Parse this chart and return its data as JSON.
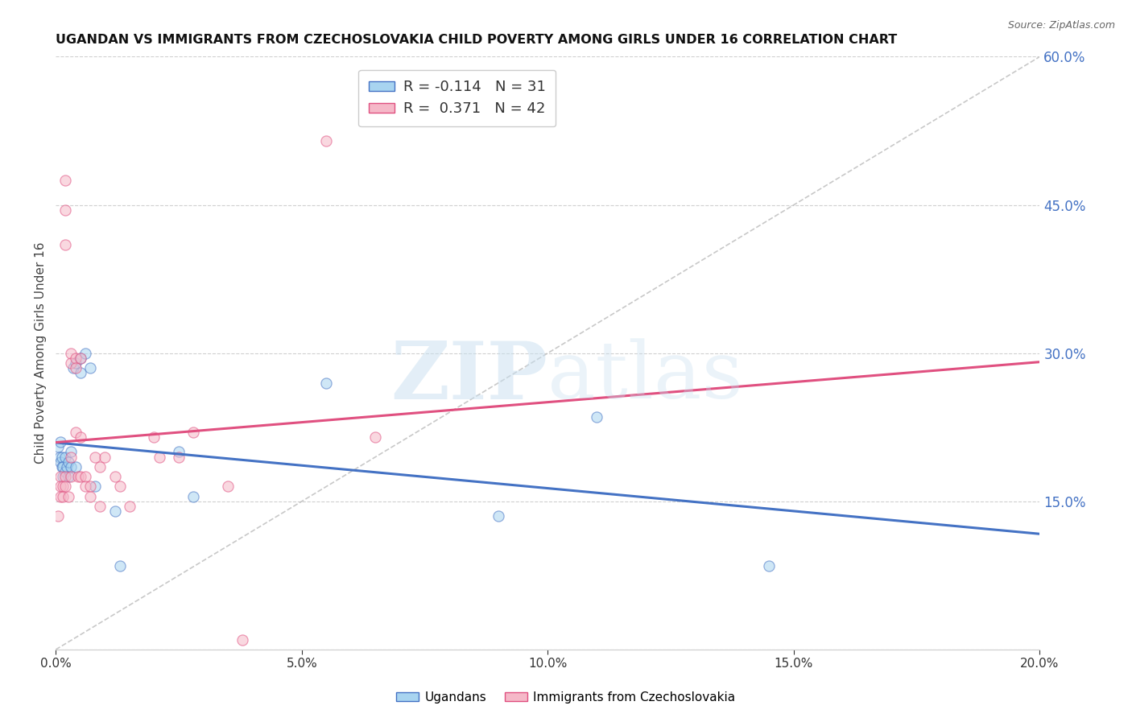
{
  "title": "UGANDAN VS IMMIGRANTS FROM CZECHOSLOVAKIA CHILD POVERTY AMONG GIRLS UNDER 16 CORRELATION CHART",
  "source": "Source: ZipAtlas.com",
  "ylabel": "Child Poverty Among Girls Under 16",
  "xlim": [
    0.0,
    0.2
  ],
  "ylim": [
    0.0,
    0.6
  ],
  "xticks": [
    0.0,
    0.05,
    0.1,
    0.15,
    0.2
  ],
  "yticks_right": [
    0.15,
    0.3,
    0.45,
    0.6
  ],
  "ugandan_x": [
    0.0005,
    0.0008,
    0.001,
    0.001,
    0.0012,
    0.0013,
    0.0015,
    0.0015,
    0.002,
    0.002,
    0.0022,
    0.0025,
    0.0025,
    0.003,
    0.003,
    0.0035,
    0.004,
    0.004,
    0.005,
    0.005,
    0.006,
    0.007,
    0.008,
    0.012,
    0.013,
    0.025,
    0.028,
    0.055,
    0.09,
    0.11,
    0.145
  ],
  "ugandan_y": [
    0.205,
    0.195,
    0.21,
    0.19,
    0.195,
    0.185,
    0.185,
    0.175,
    0.195,
    0.18,
    0.185,
    0.19,
    0.175,
    0.2,
    0.185,
    0.285,
    0.29,
    0.185,
    0.295,
    0.28,
    0.3,
    0.285,
    0.165,
    0.14,
    0.085,
    0.2,
    0.155,
    0.27,
    0.135,
    0.235,
    0.085
  ],
  "czech_x": [
    0.0005,
    0.001,
    0.001,
    0.001,
    0.0015,
    0.0015,
    0.002,
    0.002,
    0.002,
    0.002,
    0.002,
    0.0025,
    0.003,
    0.003,
    0.003,
    0.003,
    0.004,
    0.004,
    0.004,
    0.0045,
    0.005,
    0.005,
    0.005,
    0.006,
    0.006,
    0.007,
    0.007,
    0.008,
    0.009,
    0.009,
    0.01,
    0.012,
    0.013,
    0.015,
    0.02,
    0.021,
    0.025,
    0.028,
    0.035,
    0.038,
    0.055,
    0.065
  ],
  "czech_y": [
    0.135,
    0.175,
    0.165,
    0.155,
    0.165,
    0.155,
    0.475,
    0.445,
    0.41,
    0.175,
    0.165,
    0.155,
    0.3,
    0.29,
    0.195,
    0.175,
    0.295,
    0.285,
    0.22,
    0.175,
    0.295,
    0.215,
    0.175,
    0.175,
    0.165,
    0.165,
    0.155,
    0.195,
    0.185,
    0.145,
    0.195,
    0.175,
    0.165,
    0.145,
    0.215,
    0.195,
    0.195,
    0.22,
    0.165,
    0.01,
    0.515,
    0.215
  ],
  "ugandan_color": "#a8d4f0",
  "czech_color": "#f5b8c8",
  "ugandan_line_color": "#4472c4",
  "czech_line_color": "#e05080",
  "ugandan_R": -0.114,
  "ugandan_N": 31,
  "czech_R": 0.371,
  "czech_N": 42,
  "marker_size": 90,
  "marker_alpha": 0.55,
  "watermark_zip": "ZIP",
  "watermark_atlas": "atlas",
  "background_color": "#ffffff",
  "grid_color": "#d0d0d0",
  "right_axis_color": "#4472c4",
  "title_fontsize": 11.5,
  "axis_label_fontsize": 11
}
